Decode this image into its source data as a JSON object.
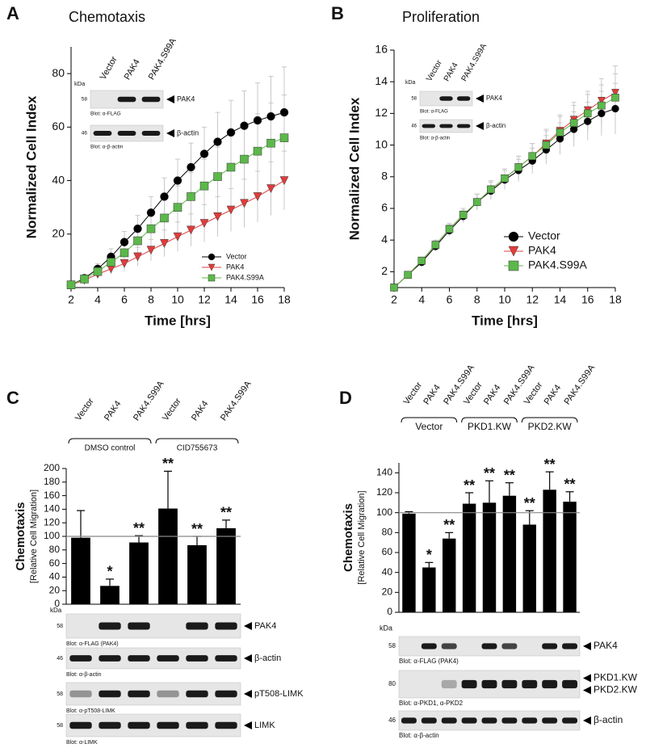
{
  "chart_data": [
    {
      "type": "line",
      "panel": "A",
      "title": "Chemotaxis",
      "xlabel": "Time [hrs]",
      "ylabel": "Normalized Cell Index",
      "x": [
        2,
        3,
        4,
        5,
        6,
        7,
        8,
        9,
        10,
        11,
        12,
        13,
        14,
        15,
        16,
        17,
        18
      ],
      "xlim": [
        2,
        18
      ],
      "xticks": [
        2,
        4,
        6,
        8,
        10,
        12,
        14,
        16,
        18
      ],
      "ylim": [
        0,
        90
      ],
      "yticks": [
        20,
        40,
        60,
        80
      ],
      "legend": "lower right",
      "series": [
        {
          "name": "Vector",
          "color": "#000000",
          "marker": "circle",
          "values": [
            1,
            3.5,
            7,
            11.5,
            17,
            22,
            28,
            34,
            40,
            45,
            50,
            54.5,
            58,
            60.5,
            62.5,
            64,
            65.5
          ],
          "errors": [
            0.5,
            1,
            2,
            3,
            4,
            5,
            6,
            7,
            8,
            9,
            10,
            11,
            12,
            13,
            14,
            15,
            17
          ]
        },
        {
          "name": "PAK4",
          "color": "#e03c3c",
          "marker": "triangle",
          "values": [
            1,
            2.8,
            5,
            7,
            9,
            11.5,
            14,
            16.5,
            19,
            21.5,
            24,
            26.5,
            29,
            31.5,
            34,
            37,
            40
          ],
          "errors": [
            0.5,
            1,
            1.5,
            2,
            3,
            3.5,
            4,
            5,
            5.5,
            6,
            7,
            7.5,
            8,
            9,
            9.5,
            10,
            11
          ]
        },
        {
          "name": "PAK4.S99A",
          "color": "#5cb84a",
          "marker": "square",
          "values": [
            1,
            3.2,
            6,
            9.5,
            13,
            17.5,
            22,
            26,
            30,
            34,
            38,
            41.5,
            45,
            48,
            51,
            54,
            56
          ],
          "errors": [
            0.5,
            1,
            2,
            3,
            4,
            5,
            6,
            7,
            8,
            9,
            10,
            11,
            12,
            13,
            14,
            15,
            16
          ]
        }
      ],
      "kda_unit": "kDa",
      "lanes": [
        "Vector",
        "PAK4",
        "PAK4.S99A"
      ],
      "blots": [
        {
          "kda": "58",
          "labels": [
            "PAK4"
          ],
          "caption": "Blot: α-FLAG"
        },
        {
          "kda": "46",
          "labels": [
            "β-actin"
          ],
          "caption": "Blot: α-β-actin"
        }
      ]
    },
    {
      "type": "line",
      "panel": "B",
      "title": "Proliferation",
      "xlabel": "Time [hrs]",
      "ylabel": "Normalized Cell Index",
      "x": [
        2,
        3,
        4,
        5,
        6,
        7,
        8,
        9,
        10,
        11,
        12,
        13,
        14,
        15,
        16,
        17,
        18
      ],
      "xlim": [
        2,
        18
      ],
      "xticks": [
        2,
        4,
        6,
        8,
        10,
        12,
        14,
        16,
        18
      ],
      "ylim": [
        1,
        16
      ],
      "yticks": [
        2,
        4,
        6,
        8,
        10,
        12,
        14,
        16
      ],
      "legend": "lower right",
      "series": [
        {
          "name": "Vector",
          "color": "#000000",
          "marker": "circle",
          "values": [
            1,
            1.8,
            2.6,
            3.6,
            4.6,
            5.5,
            6.4,
            7.1,
            7.8,
            8.4,
            9,
            9.7,
            10.4,
            11,
            11.5,
            12,
            12.3
          ],
          "errors": [
            0.1,
            0.15,
            0.2,
            0.3,
            0.35,
            0.4,
            0.5,
            0.55,
            0.6,
            0.7,
            0.8,
            0.9,
            1,
            1.1,
            1.2,
            1.4,
            1.6
          ]
        },
        {
          "name": "PAK4",
          "color": "#e03c3c",
          "marker": "triangle",
          "values": [
            1,
            1.8,
            2.7,
            3.7,
            4.7,
            5.6,
            6.4,
            7.2,
            7.9,
            8.6,
            9.3,
            10.1,
            10.9,
            11.6,
            12.2,
            12.8,
            13.3
          ],
          "errors": [
            0.1,
            0.15,
            0.2,
            0.3,
            0.35,
            0.4,
            0.5,
            0.55,
            0.6,
            0.7,
            0.8,
            0.9,
            1,
            1.1,
            1.2,
            1.4,
            1.7
          ]
        },
        {
          "name": "PAK4.S99A",
          "color": "#5cb84a",
          "marker": "square",
          "values": [
            1,
            1.8,
            2.7,
            3.7,
            4.7,
            5.6,
            6.4,
            7.2,
            7.9,
            8.6,
            9.3,
            10,
            10.8,
            11.4,
            12,
            12.5,
            13
          ],
          "errors": [
            0.1,
            0.15,
            0.2,
            0.3,
            0.35,
            0.4,
            0.5,
            0.55,
            0.6,
            0.7,
            0.8,
            0.9,
            1,
            1.1,
            1.2,
            1.3,
            1.5
          ]
        }
      ],
      "kda_unit": "kDa",
      "lanes": [
        "Vector",
        "PAK4",
        "PAK4.S99A"
      ],
      "blots": [
        {
          "kda": "58",
          "labels": [
            "PAK4"
          ],
          "caption": "Blot: α-FLAG"
        },
        {
          "kda": "46",
          "labels": [
            "β-actin"
          ],
          "caption": "Blot: α-β-actin"
        }
      ]
    },
    {
      "type": "bar",
      "panel": "C",
      "ylabel": "Chemotaxis",
      "ylabel_sub": "[Relative Cell Migration]",
      "categories": [
        "Vector",
        "PAK4",
        "PAK4.S99A",
        "Vector",
        "PAK4",
        "PAK4.S99A"
      ],
      "groups": [
        "DMSO control",
        "CID755673"
      ],
      "values": [
        98,
        27,
        91,
        141,
        87,
        112
      ],
      "errors": [
        40,
        10,
        10,
        55,
        13,
        12
      ],
      "significance": [
        null,
        "*",
        "**",
        "**",
        "**",
        "**"
      ],
      "color": "#000000",
      "ref_line": 100,
      "ylim": [
        0,
        200
      ],
      "yticks": [
        0,
        20,
        40,
        60,
        80,
        100,
        120,
        140,
        160,
        180,
        200
      ],
      "kda_unit": "kDa",
      "blots": [
        {
          "kda": "58",
          "labels": [
            "PAK4"
          ],
          "caption": "Blot: α-FLAG (PAK4)"
        },
        {
          "kda": "46",
          "labels": [
            "β-actin"
          ],
          "caption": "Blot: α-β-actin"
        },
        {
          "kda": "58",
          "labels": [
            "pT508-LIMK"
          ],
          "caption": "Blot: α-pT508-LIMK"
        },
        {
          "kda": "58",
          "labels": [
            "LIMK"
          ],
          "caption": "Blot: α-LIMK"
        }
      ]
    },
    {
      "type": "bar",
      "panel": "D",
      "ylabel": "Chemotaxis",
      "ylabel_sub": "[Relative Cell Migration]",
      "categories": [
        "Vector",
        "PAK4",
        "PAK4.S99A",
        "Vector",
        "PAK4",
        "PAK4.S99A",
        "Vector",
        "PAK4",
        "PAK4.S99A"
      ],
      "groups": [
        "Vector",
        "PKD1.KW",
        "PKD2.KW"
      ],
      "values": [
        99,
        45,
        74,
        109,
        110,
        117,
        88,
        123,
        111
      ],
      "errors": [
        2,
        5,
        6,
        11,
        22,
        13,
        14,
        18,
        10
      ],
      "significance": [
        null,
        "*",
        "**",
        "**",
        "**",
        "**",
        "**",
        "**",
        "**"
      ],
      "color": "#000000",
      "ref_line": 100,
      "ylim": [
        0,
        150
      ],
      "yticks": [
        0,
        20,
        40,
        60,
        80,
        100,
        120,
        140
      ],
      "kda_unit": "kDa",
      "blots": [
        {
          "kda": "58",
          "labels": [
            "PAK4"
          ],
          "caption": "Blot: α-FLAG (PAK4)"
        },
        {
          "kda": "80",
          "labels": [
            "PKD1.KW",
            "PKD2.KW"
          ],
          "caption": "Blot: α-PKD1, α-PKD2"
        },
        {
          "kda": "46",
          "labels": [
            "β-actin"
          ],
          "caption": "Blot: α-β-actin"
        }
      ]
    }
  ]
}
